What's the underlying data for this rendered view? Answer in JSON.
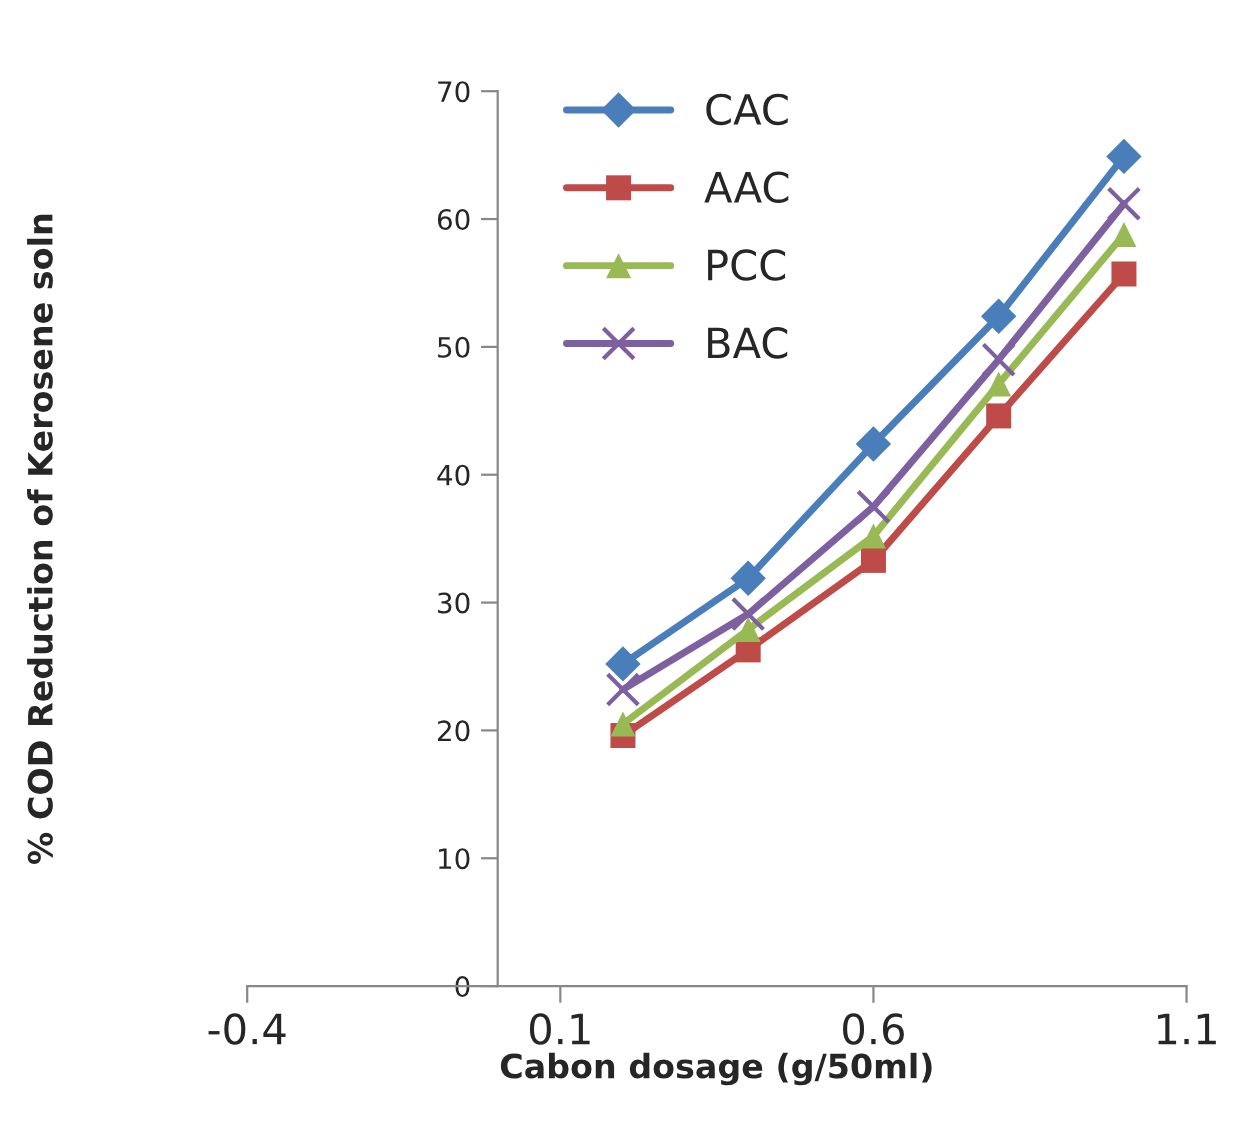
{
  "chart_data": {
    "type": "line",
    "xlabel": "Cabon dosage (g/50ml)",
    "ylabel": "% COD Reduction of Kerosene soln",
    "x": [
      0.2,
      0.4,
      0.6,
      0.8,
      1.0
    ],
    "series": [
      {
        "name": "CAC",
        "color": "#4a7ebb",
        "marker": "diamond",
        "values": [
          25.2,
          31.9,
          42.4,
          52.4,
          64.9
        ]
      },
      {
        "name": "AAC",
        "color": "#be4b48",
        "marker": "square",
        "values": [
          19.6,
          26.3,
          33.3,
          44.6,
          55.7
        ]
      },
      {
        "name": "PCC",
        "color": "#98b954",
        "marker": "triangle",
        "values": [
          20.5,
          27.9,
          35.2,
          47.1,
          58.8
        ]
      },
      {
        "name": "BAC",
        "color": "#7d60a0",
        "marker": "cross",
        "values": [
          23.2,
          29.1,
          37.5,
          49.0,
          61.2
        ]
      }
    ],
    "xlim": [
      -0.4,
      1.1
    ],
    "xticks": [
      -0.4,
      0.1,
      0.6,
      1.1
    ],
    "ylim": [
      0,
      70
    ],
    "yticks": [
      0,
      10,
      20,
      30,
      40,
      50,
      60,
      70
    ],
    "grid": false,
    "legend": "top left",
    "line_style": "solid"
  }
}
